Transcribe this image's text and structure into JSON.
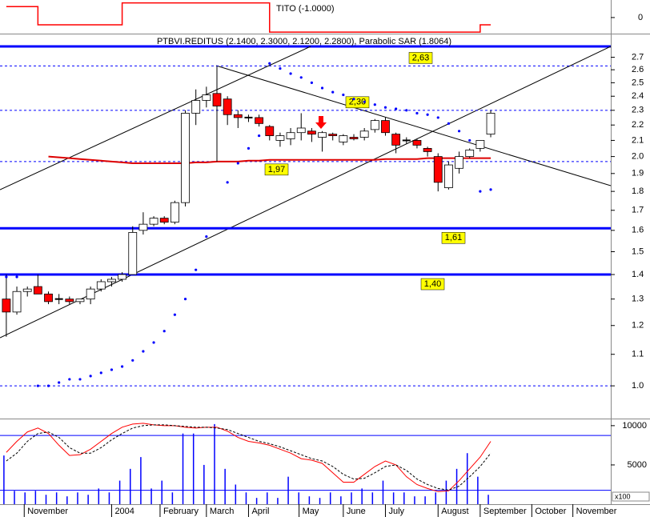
{
  "chart_data": [
    {
      "type": "line",
      "title": "TITO (-1.0000)",
      "step": true,
      "x": [
        0,
        1,
        2,
        3,
        4,
        5,
        6,
        7,
        8,
        9,
        10,
        11,
        12,
        13,
        14,
        15,
        16,
        17,
        18,
        19,
        20,
        21,
        22,
        23,
        24,
        25,
        26,
        27,
        28,
        29,
        30,
        31,
        32,
        33,
        34,
        35,
        36,
        37,
        38,
        39,
        40,
        41,
        42,
        43,
        44,
        45,
        46
      ],
      "xlim": [
        -0.6,
        57.4
      ],
      "series": [
        {
          "color": "#ff0000",
          "values": [
            1.5,
            1.5,
            1.5,
            -1,
            -1,
            -1,
            -1,
            -1,
            -1,
            -1,
            -1,
            2,
            2,
            2,
            2,
            2,
            2,
            2,
            2,
            2,
            2,
            2,
            2,
            2,
            2,
            -2,
            -2,
            -2,
            -2,
            -2,
            -2,
            -2,
            -2,
            -2,
            -2,
            -2,
            -2,
            -2,
            -2,
            -2,
            -2,
            -2,
            -2,
            -2,
            -2,
            -1,
            -1
          ]
        }
      ],
      "ylim": [
        -2.2,
        2.4
      ],
      "yticks": [
        0
      ]
    },
    {
      "type": "candlestick",
      "title": "PTBVI.REDITUS (2.1400, 2.3000, 2.1200, 2.2800), Parabolic SAR (1.8064)",
      "x": [
        0,
        1,
        2,
        3,
        4,
        5,
        6,
        7,
        8,
        9,
        10,
        11,
        12,
        13,
        14,
        15,
        16,
        17,
        18,
        19,
        20,
        21,
        22,
        23,
        24,
        25,
        26,
        27,
        28,
        29,
        30,
        31,
        32,
        33,
        34,
        35,
        36,
        37,
        38,
        39,
        40,
        41,
        42,
        43,
        44,
        45,
        46
      ],
      "xlim": [
        -0.6,
        57.4
      ],
      "open": [
        1.3,
        1.25,
        1.33,
        1.35,
        1.32,
        1.3,
        1.3,
        1.29,
        1.3,
        1.34,
        1.37,
        1.38,
        1.4,
        1.6,
        1.63,
        1.66,
        1.64,
        1.74,
        2.28,
        2.37,
        2.42,
        2.38,
        2.27,
        2.25,
        2.25,
        2.19,
        2.1,
        2.11,
        2.15,
        2.16,
        2.12,
        2.14,
        2.09,
        2.12,
        2.12,
        2.17,
        2.23,
        2.14,
        2.1,
        2.1,
        2.05,
        2.0,
        1.82,
        1.93,
        2.0,
        2.05,
        2.14
      ],
      "high": [
        1.4,
        1.35,
        1.35,
        1.4,
        1.33,
        1.32,
        1.31,
        1.3,
        1.35,
        1.38,
        1.39,
        1.41,
        1.62,
        1.69,
        1.67,
        1.67,
        1.75,
        2.3,
        2.45,
        2.47,
        2.63,
        2.4,
        2.3,
        2.27,
        2.27,
        2.2,
        2.15,
        2.18,
        2.28,
        2.18,
        2.16,
        2.15,
        2.14,
        2.14,
        2.18,
        2.24,
        2.25,
        2.15,
        2.12,
        2.11,
        2.06,
        2.02,
        1.97,
        2.03,
        2.05,
        2.1,
        2.3
      ],
      "low": [
        1.16,
        1.24,
        1.31,
        1.32,
        1.28,
        1.28,
        1.28,
        1.28,
        1.28,
        1.33,
        1.35,
        1.37,
        1.4,
        1.58,
        1.62,
        1.63,
        1.63,
        1.72,
        2.2,
        2.32,
        1.97,
        2.2,
        2.18,
        2.22,
        2.19,
        2.1,
        2.06,
        2.07,
        2.1,
        2.09,
        2.03,
        2.1,
        2.07,
        2.1,
        2.1,
        2.15,
        2.13,
        2.02,
        2.08,
        2.05,
        2.0,
        1.8,
        1.81,
        1.9,
        1.99,
        2.03,
        2.12
      ],
      "close": [
        1.25,
        1.33,
        1.34,
        1.32,
        1.29,
        1.3,
        1.29,
        1.3,
        1.34,
        1.37,
        1.38,
        1.4,
        1.59,
        1.63,
        1.66,
        1.64,
        1.74,
        2.28,
        2.37,
        2.41,
        2.33,
        2.27,
        2.25,
        2.25,
        2.21,
        2.13,
        2.13,
        2.15,
        2.18,
        2.14,
        2.15,
        2.13,
        2.13,
        2.11,
        2.16,
        2.23,
        2.15,
        2.07,
        2.1,
        2.07,
        2.03,
        1.85,
        1.95,
        2.0,
        2.04,
        2.1,
        2.28
      ],
      "up_color": "#ffffff",
      "down_color": "#ff0000",
      "sar": {
        "color": "#0000ff",
        "values": [
          1.39,
          1.39,
          null,
          1.0,
          1.0,
          1.01,
          1.02,
          1.02,
          1.03,
          1.04,
          1.05,
          1.06,
          1.08,
          1.11,
          1.14,
          1.18,
          1.24,
          1.3,
          1.42,
          1.57,
          null,
          1.85,
          1.96,
          2.05,
          2.13,
          2.65,
          2.61,
          2.57,
          2.54,
          2.5,
          2.46,
          2.43,
          2.41,
          2.38,
          2.36,
          2.34,
          2.32,
          2.31,
          2.3,
          2.28,
          2.27,
          2.25,
          2.21,
          2.16,
          2.1,
          1.8,
          1.81
        ]
      },
      "ma": {
        "color": "#dd0000",
        "values": [
          null,
          null,
          null,
          null,
          2.0,
          1.995,
          1.99,
          1.985,
          1.98,
          1.975,
          1.97,
          1.965,
          1.96,
          1.96,
          1.96,
          1.96,
          1.96,
          1.96,
          1.965,
          1.965,
          1.97,
          1.97,
          1.97,
          1.975,
          1.975,
          1.98,
          1.98,
          1.98,
          1.98,
          1.98,
          1.98,
          1.98,
          1.98,
          1.98,
          1.98,
          1.98,
          1.985,
          1.985,
          1.985,
          1.985,
          1.99,
          1.99,
          1.99,
          1.99,
          1.99,
          1.99,
          1.99
        ]
      },
      "levels": [
        {
          "value": 2.63,
          "label": "2,63",
          "style": "dotted"
        },
        {
          "value": 2.3,
          "label": "2,30",
          "style": "dotted"
        },
        {
          "value": 1.97,
          "label": "1,97",
          "style": "dotted"
        },
        {
          "value": 1.61,
          "label": "1,61",
          "style": "solid"
        },
        {
          "value": 1.4,
          "label": "1,40",
          "style": "solid"
        },
        {
          "value": 1.0,
          "style": "dotted"
        }
      ],
      "level_color": "#0000ff",
      "log_scale": true,
      "ylim": [
        0.908,
        2.79
      ],
      "yticks": [
        {
          "value": 1.0,
          "label": "1.0"
        },
        1.1,
        1.2,
        1.3,
        1.4,
        1.5,
        1.6,
        1.7,
        1.8,
        1.9,
        {
          "value": 2.0,
          "label": "2.0"
        },
        2.1,
        2.2,
        2.3,
        2.4,
        2.5,
        2.6,
        2.7
      ]
    },
    {
      "type": "volume",
      "x": [
        0,
        1,
        2,
        3,
        4,
        5,
        6,
        7,
        8,
        9,
        10,
        11,
        12,
        13,
        14,
        15,
        16,
        17,
        18,
        19,
        20,
        21,
        22,
        23,
        24,
        25,
        26,
        27,
        28,
        29,
        30,
        31,
        32,
        33,
        34,
        35,
        36,
        37,
        38,
        39,
        40,
        41,
        42,
        43,
        44,
        45,
        46
      ],
      "xlim": [
        -0.6,
        57.4
      ],
      "values": [
        6200,
        1700,
        1500,
        1700,
        1200,
        1500,
        1000,
        1500,
        1200,
        2000,
        1500,
        3000,
        4500,
        6000,
        2000,
        3000,
        1500,
        9000,
        9000,
        5000,
        10200,
        4500,
        2500,
        1500,
        800,
        1500,
        800,
        3500,
        1500,
        1000,
        800,
        1500,
        1000,
        1500,
        2000,
        1500,
        3000,
        1500,
        1500,
        1000,
        1000,
        1500,
        3000,
        4500,
        6500,
        3500,
        1200
      ],
      "color": "#0000ff",
      "series": [
        {
          "color": "#ff0000",
          "dash": false,
          "values": [
            6600,
            8000,
            9200,
            9700,
            9000,
            7500,
            6200,
            6300,
            7000,
            8000,
            9000,
            9800,
            10200,
            10300,
            10100,
            10000,
            10000,
            9800,
            9700,
            9800,
            9800,
            9300,
            8500,
            8000,
            7800,
            7500,
            7000,
            6500,
            5800,
            5600,
            5200,
            4000,
            2800,
            2800,
            3800,
            4800,
            5500,
            5000,
            3500,
            2500,
            2000,
            1600,
            1700,
            3000,
            4500,
            6000,
            8000
          ]
        },
        {
          "color": "#000000",
          "dash": true,
          "values": [
            5500,
            6500,
            8000,
            9000,
            9200,
            8500,
            7200,
            6500,
            6500,
            7200,
            8200,
            9000,
            9700,
            10000,
            10100,
            10100,
            10000,
            9900,
            9800,
            9800,
            9700,
            9500,
            9000,
            8500,
            8000,
            7700,
            7300,
            6800,
            6300,
            5800,
            5500,
            4800,
            3800,
            3200,
            3300,
            4000,
            4800,
            5000,
            4300,
            3200,
            2500,
            2000,
            1800,
            2300,
            3500,
            4800,
            6500
          ]
        }
      ],
      "levels": [
        8750,
        1770
      ],
      "unit_label": "x100",
      "ylim": [
        0,
        10700
      ],
      "yticks": [
        10000,
        5000
      ],
      "xticks": [
        {
          "value": 1.7,
          "label": "November"
        },
        {
          "value": 10,
          "label": "2004"
        },
        {
          "value": 14.6,
          "label": "February"
        },
        {
          "value": 19,
          "label": "March"
        },
        {
          "value": 23,
          "label": "April"
        },
        {
          "value": 27.8,
          "label": "May"
        },
        {
          "value": 32,
          "label": "June"
        },
        {
          "value": 36,
          "label": "July"
        },
        {
          "value": 41,
          "label": "August"
        },
        {
          "value": 45,
          "label": "September"
        },
        {
          "value": 49.9,
          "label": "October"
        },
        {
          "value": 53.8,
          "label": "November"
        }
      ]
    }
  ]
}
